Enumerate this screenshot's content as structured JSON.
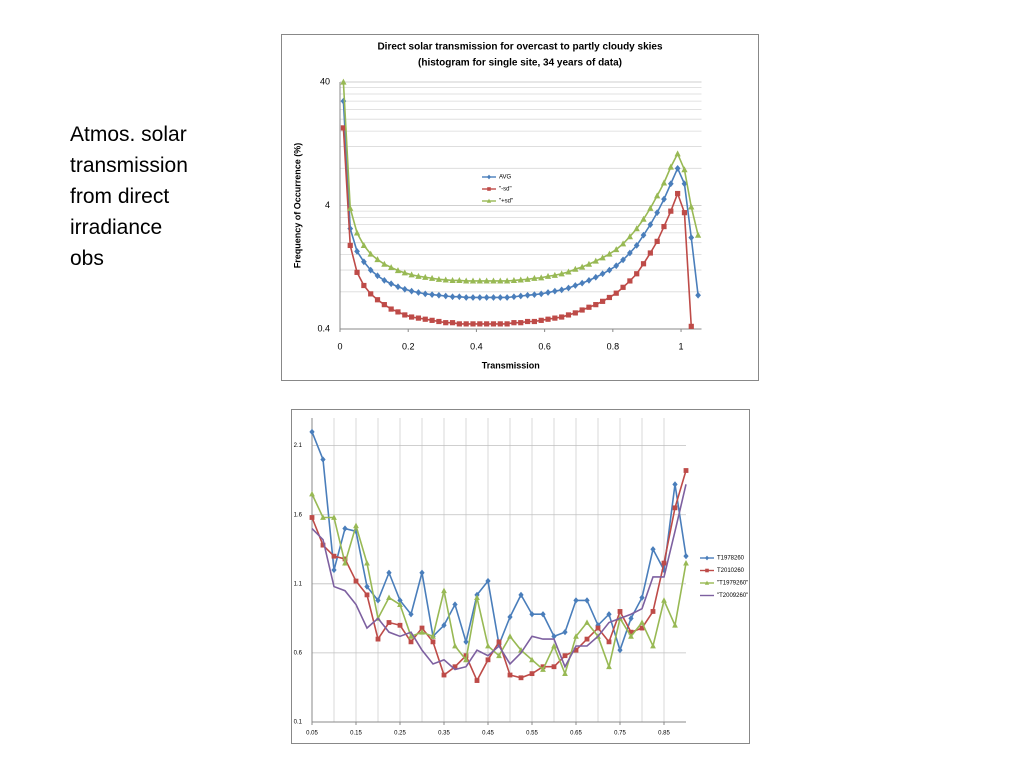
{
  "text": [
    "Atmos. solar",
    "transmission",
    "from direct",
    "irradiance",
    "obs"
  ],
  "chart_data": [
    {
      "type": "line",
      "title": "Direct solar transmission for overcast to partly cloudy skies",
      "subtitle": "(histogram for single site, 34 years of data)",
      "x_label": "Transmission",
      "y_label": "Frequency of Occurrence (%)",
      "log_y": true,
      "grid": true,
      "minor_grid": true,
      "xlim": [
        0,
        1.06
      ],
      "xticks": [
        0,
        0.2,
        0.4,
        0.6,
        0.8,
        1
      ],
      "ylim": [
        0.4,
        40
      ],
      "yticks": [
        0.4,
        4,
        40
      ],
      "x": [
        0.01,
        0.03,
        0.05,
        0.07,
        0.09,
        0.11,
        0.13,
        0.15,
        0.17,
        0.19,
        0.21,
        0.23,
        0.25,
        0.27,
        0.29,
        0.31,
        0.33,
        0.35,
        0.37,
        0.39,
        0.41,
        0.43,
        0.45,
        0.47,
        0.49,
        0.51,
        0.53,
        0.55,
        0.57,
        0.59,
        0.61,
        0.63,
        0.65,
        0.67,
        0.69,
        0.71,
        0.73,
        0.75,
        0.77,
        0.79,
        0.81,
        0.83,
        0.85,
        0.87,
        0.89,
        0.91,
        0.93,
        0.95,
        0.97,
        0.99,
        1.01,
        1.03,
        1.05
      ],
      "series": [
        {
          "name": "AVG",
          "color": "#4a7ebb",
          "marker": "diamond",
          "values": [
            28,
            2.6,
            1.7,
            1.4,
            1.2,
            1.08,
            0.99,
            0.93,
            0.88,
            0.84,
            0.81,
            0.79,
            0.77,
            0.76,
            0.75,
            0.74,
            0.73,
            0.73,
            0.72,
            0.72,
            0.72,
            0.72,
            0.72,
            0.72,
            0.72,
            0.73,
            0.74,
            0.75,
            0.76,
            0.77,
            0.79,
            0.81,
            0.83,
            0.86,
            0.9,
            0.94,
            0.99,
            1.05,
            1.12,
            1.2,
            1.3,
            1.45,
            1.65,
            1.9,
            2.3,
            2.8,
            3.5,
            4.5,
            6,
            8,
            6,
            2.2,
            0.75
          ]
        },
        {
          "name": "\"-sd\"",
          "color": "#be4b48",
          "marker": "square",
          "values": [
            17,
            1.9,
            1.15,
            0.9,
            0.77,
            0.69,
            0.63,
            0.58,
            0.55,
            0.52,
            0.5,
            0.49,
            0.48,
            0.47,
            0.46,
            0.45,
            0.45,
            0.44,
            0.44,
            0.44,
            0.44,
            0.44,
            0.44,
            0.44,
            0.44,
            0.45,
            0.45,
            0.46,
            0.46,
            0.47,
            0.48,
            0.49,
            0.5,
            0.52,
            0.54,
            0.57,
            0.6,
            0.63,
            0.67,
            0.72,
            0.78,
            0.87,
            0.98,
            1.12,
            1.35,
            1.65,
            2.05,
            2.7,
            3.6,
            5,
            3.5,
            0.42,
            null
          ]
        },
        {
          "name": "\"+sd\"",
          "color": "#98b954",
          "marker": "triangle",
          "values": [
            40,
            3.8,
            2.4,
            1.9,
            1.62,
            1.46,
            1.34,
            1.26,
            1.19,
            1.14,
            1.1,
            1.07,
            1.05,
            1.03,
            1.01,
            1.0,
            0.99,
            0.99,
            0.98,
            0.98,
            0.98,
            0.98,
            0.98,
            0.98,
            0.98,
            0.99,
            1.0,
            1.01,
            1.03,
            1.04,
            1.07,
            1.09,
            1.12,
            1.16,
            1.22,
            1.27,
            1.34,
            1.42,
            1.51,
            1.62,
            1.76,
            1.96,
            2.24,
            2.6,
            3.1,
            3.8,
            4.8,
            6.1,
            8.2,
            10.5,
            7.8,
            3.9,
            2.3
          ]
        }
      ]
    },
    {
      "type": "line",
      "grid": true,
      "x_grid": true,
      "xlim": [
        0.05,
        0.9
      ],
      "xticks": [
        0.05,
        0.15,
        0.25,
        0.35,
        0.45,
        0.55,
        0.65,
        0.75,
        0.85
      ],
      "ylim": [
        0.1,
        2.3
      ],
      "yticks": [
        0.1,
        0.6,
        1.1,
        1.6,
        2.1
      ],
      "x": [
        0.05,
        0.075,
        0.1,
        0.125,
        0.15,
        0.175,
        0.2,
        0.225,
        0.25,
        0.275,
        0.3,
        0.325,
        0.35,
        0.375,
        0.4,
        0.425,
        0.45,
        0.475,
        0.5,
        0.525,
        0.55,
        0.575,
        0.6,
        0.625,
        0.65,
        0.675,
        0.7,
        0.725,
        0.75,
        0.775,
        0.8,
        0.825,
        0.85,
        0.875,
        0.9
      ],
      "series": [
        {
          "name": "T1978260",
          "color": "#4a7ebb",
          "marker": "diamond",
          "values": [
            2.2,
            2.0,
            1.2,
            1.5,
            1.48,
            1.08,
            0.98,
            1.18,
            0.98,
            0.88,
            1.18,
            0.72,
            0.8,
            0.95,
            0.68,
            1.02,
            1.12,
            0.66,
            0.86,
            1.02,
            0.88,
            0.88,
            0.72,
            0.75,
            0.98,
            0.98,
            0.8,
            0.88,
            0.62,
            0.85,
            1.0,
            1.35,
            1.2,
            1.82,
            1.3
          ]
        },
        {
          "name": "T2010260",
          "color": "#be4b48",
          "marker": "square",
          "values": [
            1.58,
            1.38,
            1.3,
            1.28,
            1.12,
            1.02,
            0.7,
            0.82,
            0.8,
            0.68,
            0.78,
            0.68,
            0.44,
            0.5,
            0.58,
            0.4,
            0.55,
            0.68,
            0.44,
            0.42,
            0.45,
            0.5,
            0.5,
            0.58,
            0.62,
            0.7,
            0.78,
            0.68,
            0.9,
            0.75,
            0.78,
            0.9,
            1.25,
            1.65,
            1.92
          ]
        },
        {
          "name": "\"T1979260\"",
          "color": "#98b954",
          "marker": "triangle",
          "values": [
            1.75,
            1.58,
            1.58,
            1.25,
            1.52,
            1.25,
            0.85,
            1.0,
            0.95,
            0.72,
            0.75,
            0.72,
            1.05,
            0.65,
            0.55,
            1.0,
            0.65,
            0.58,
            0.72,
            0.62,
            0.55,
            0.48,
            0.65,
            0.45,
            0.72,
            0.82,
            0.72,
            0.5,
            0.85,
            0.72,
            0.82,
            0.65,
            0.98,
            0.8,
            1.25
          ]
        },
        {
          "name": "\"T2009260\"",
          "color": "#7d60a0",
          "marker": "none",
          "values": [
            1.5,
            1.42,
            1.08,
            1.05,
            0.95,
            0.78,
            0.85,
            0.75,
            0.72,
            0.75,
            0.62,
            0.52,
            0.55,
            0.48,
            0.5,
            0.62,
            0.58,
            0.65,
            0.52,
            0.6,
            0.72,
            0.7,
            0.7,
            0.5,
            0.65,
            0.65,
            0.72,
            0.82,
            0.85,
            0.88,
            0.92,
            1.15,
            1.15,
            1.48,
            1.82
          ]
        }
      ]
    }
  ]
}
